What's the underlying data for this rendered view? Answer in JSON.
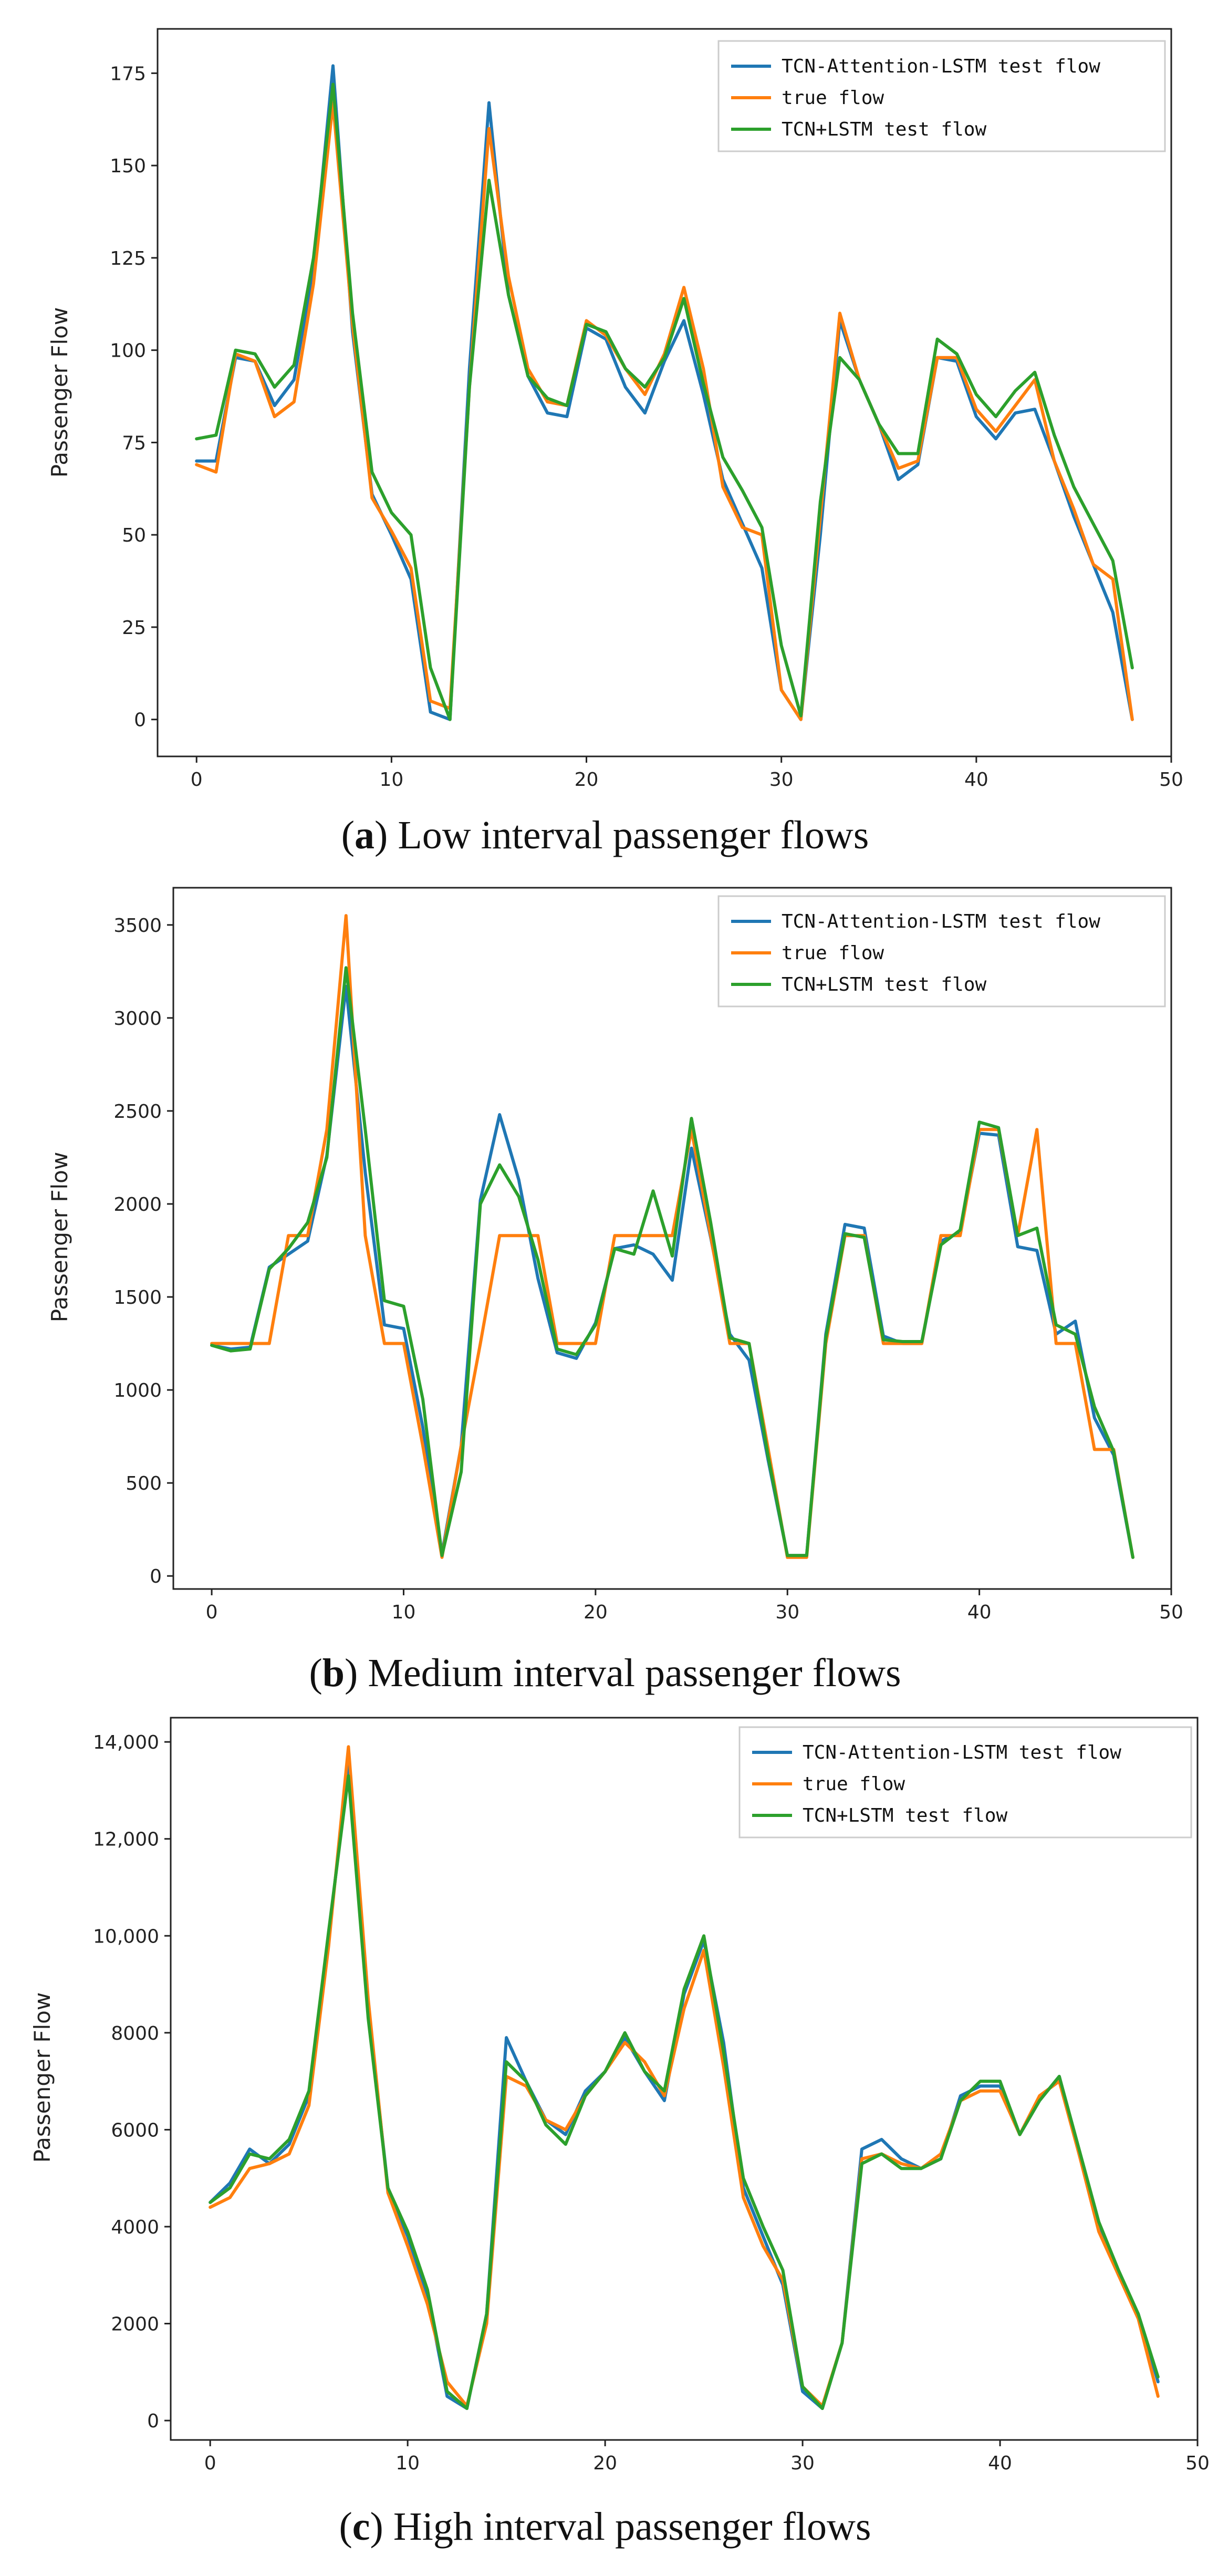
{
  "colors": {
    "tcn_attention_lstm": "#1f77b4",
    "true_flow": "#ff7f0e",
    "tcn_lstm": "#2ca02c"
  },
  "chart_data": [
    {
      "type": "line",
      "caption_letter": "a",
      "caption_text": "Low interval passenger flows",
      "ylabel": "Passenger Flow",
      "xlabel": "",
      "xlim": [
        -2,
        50
      ],
      "ylim": [
        -10,
        187
      ],
      "xticks": [
        0,
        10,
        20,
        30,
        40,
        50
      ],
      "yticks": [
        0,
        25,
        50,
        75,
        100,
        125,
        150,
        175
      ],
      "ytick_labels": [
        "0",
        "25",
        "50",
        "75",
        "100",
        "125",
        "150",
        "175"
      ],
      "legend": [
        "TCN-Attention-LSTM test flow",
        "true flow",
        "TCN+LSTM test flow"
      ],
      "x": [
        0,
        1,
        2,
        3,
        4,
        5,
        6,
        7,
        8,
        9,
        10,
        11,
        12,
        13,
        14,
        15,
        16,
        17,
        18,
        19,
        20,
        21,
        22,
        23,
        24,
        25,
        26,
        27,
        28,
        29,
        30,
        31,
        32,
        33,
        34,
        35,
        36,
        37,
        38,
        39,
        40,
        41,
        42,
        43,
        44,
        45,
        46,
        47,
        48
      ],
      "series": [
        {
          "name": "TCN-Attention-LSTM test flow",
          "values": [
            70,
            70,
            98,
            97,
            85,
            92,
            122,
            177,
            105,
            61,
            50,
            38,
            2,
            0,
            95,
            167,
            115,
            93,
            83,
            82,
            106,
            103,
            90,
            83,
            97,
            108,
            88,
            65,
            53,
            41,
            8,
            0,
            50,
            108,
            92,
            80,
            65,
            69,
            98,
            97,
            82,
            76,
            83,
            84,
            70,
            55,
            42,
            29,
            0
          ]
        },
        {
          "name": "true flow",
          "values": [
            69,
            67,
            99,
            97,
            82,
            86,
            118,
            167,
            107,
            60,
            51,
            41,
            5,
            3,
            90,
            160,
            120,
            95,
            86,
            85,
            108,
            104,
            95,
            88,
            99,
            117,
            95,
            63,
            52,
            50,
            8,
            0,
            55,
            110,
            92,
            80,
            68,
            70,
            98,
            98,
            84,
            78,
            85,
            92,
            70,
            57,
            42,
            38,
            0
          ]
        },
        {
          "name": "TCN+LSTM test flow",
          "values": [
            76,
            77,
            100,
            99,
            90,
            96,
            125,
            172,
            110,
            67,
            56,
            50,
            14,
            0,
            90,
            146,
            115,
            93,
            87,
            85,
            107,
            105,
            95,
            90,
            98,
            114,
            91,
            71,
            62,
            52,
            20,
            1,
            59,
            98,
            92,
            80,
            72,
            72,
            103,
            99,
            88,
            82,
            89,
            94,
            77,
            63,
            53,
            43,
            14
          ]
        }
      ]
    },
    {
      "type": "line",
      "caption_letter": "b",
      "caption_text": "Medium interval passenger flows",
      "ylabel": "Passenger Flow",
      "xlabel": "",
      "xlim": [
        -2,
        50
      ],
      "ylim": [
        -70,
        3700
      ],
      "xticks": [
        0,
        10,
        20,
        30,
        40,
        50
      ],
      "yticks": [
        0,
        500,
        1000,
        1500,
        2000,
        2500,
        3000,
        3500
      ],
      "ytick_labels": [
        "0",
        "500",
        "1000",
        "1500",
        "2000",
        "2500",
        "3000",
        "3500"
      ],
      "legend": [
        "TCN-Attention-LSTM test flow",
        "true flow",
        "TCN+LSTM test flow"
      ],
      "x": [
        0,
        1,
        2,
        3,
        4,
        5,
        6,
        7,
        8,
        9,
        10,
        11,
        12,
        13,
        14,
        15,
        16,
        17,
        18,
        19,
        20,
        21,
        22,
        23,
        24,
        25,
        26,
        27,
        28,
        29,
        30,
        31,
        32,
        33,
        34,
        35,
        36,
        37,
        38,
        39,
        40,
        41,
        42,
        43,
        44,
        45,
        46,
        47,
        48
      ],
      "series": [
        {
          "name": "TCN-Attention-LSTM test flow",
          "values": [
            1240,
            1220,
            1230,
            1660,
            1730,
            1800,
            2260,
            3170,
            2170,
            1350,
            1330,
            800,
            120,
            700,
            2020,
            2480,
            2130,
            1600,
            1200,
            1170,
            1360,
            1760,
            1780,
            1730,
            1590,
            2300,
            1820,
            1300,
            1160,
            620,
            110,
            110,
            1300,
            1890,
            1870,
            1290,
            1250,
            1250,
            1800,
            1850,
            2380,
            2370,
            1770,
            1750,
            1300,
            1370,
            850,
            650,
            100
          ]
        },
        {
          "name": "true flow",
          "values": [
            1250,
            1250,
            1250,
            1250,
            1830,
            1830,
            2400,
            3550,
            1830,
            1250,
            1250,
            700,
            100,
            700,
            1250,
            1830,
            1830,
            1830,
            1250,
            1250,
            1250,
            1830,
            1830,
            1830,
            1830,
            2400,
            1830,
            1250,
            1250,
            680,
            100,
            100,
            1250,
            1830,
            1830,
            1250,
            1250,
            1250,
            1830,
            1830,
            2400,
            2400,
            1830,
            2400,
            1250,
            1250,
            680,
            680,
            100
          ]
        },
        {
          "name": "TCN+LSTM test flow",
          "values": [
            1240,
            1210,
            1220,
            1650,
            1760,
            1900,
            2250,
            3270,
            2400,
            1480,
            1450,
            950,
            110,
            560,
            2000,
            2210,
            2040,
            1700,
            1220,
            1190,
            1350,
            1760,
            1730,
            2070,
            1720,
            2460,
            1900,
            1280,
            1250,
            640,
            110,
            110,
            1280,
            1840,
            1820,
            1270,
            1260,
            1260,
            1780,
            1860,
            2440,
            2410,
            1830,
            1870,
            1350,
            1300,
            910,
            670,
            100
          ]
        }
      ]
    },
    {
      "type": "line",
      "caption_letter": "c",
      "caption_text": "High interval passenger flows",
      "ylabel": "Passenger Flow",
      "xlabel": "",
      "xlim": [
        -2,
        50
      ],
      "ylim": [
        -400,
        14500
      ],
      "xticks": [
        0,
        10,
        20,
        30,
        40,
        50
      ],
      "yticks": [
        0,
        2000,
        4000,
        6000,
        8000,
        10000,
        12000,
        14000
      ],
      "ytick_labels": [
        "0",
        "2000",
        "4000",
        "6000",
        "8000",
        "10,000",
        "12,000",
        "14,000"
      ],
      "legend": [
        "TCN-Attention-LSTM test flow",
        "true flow",
        "TCN+LSTM test flow"
      ],
      "x": [
        0,
        1,
        2,
        3,
        4,
        5,
        6,
        7,
        8,
        9,
        10,
        11,
        12,
        13,
        14,
        15,
        16,
        17,
        18,
        19,
        20,
        21,
        22,
        23,
        24,
        25,
        26,
        27,
        28,
        29,
        30,
        31,
        32,
        33,
        34,
        35,
        36,
        37,
        38,
        39,
        40,
        41,
        42,
        43,
        44,
        45,
        46,
        47,
        48
      ],
      "series": [
        {
          "name": "TCN-Attention-LSTM test flow",
          "values": [
            4500,
            4900,
            5600,
            5300,
            5700,
            6700,
            10000,
            13500,
            8500,
            4800,
            3800,
            2600,
            500,
            250,
            2200,
            7900,
            7000,
            6200,
            5900,
            6800,
            7200,
            7900,
            7200,
            6600,
            8800,
            9900,
            7800,
            4800,
            3800,
            2800,
            600,
            250,
            1600,
            5600,
            5800,
            5400,
            5200,
            5400,
            6700,
            6900,
            6900,
            5900,
            6600,
            7100,
            5500,
            4000,
            3000,
            2200,
            800
          ]
        },
        {
          "name": "true flow",
          "values": [
            4400,
            4600,
            5200,
            5300,
            5500,
            6500,
            9800,
            13900,
            8700,
            4700,
            3600,
            2400,
            800,
            300,
            2000,
            7100,
            6900,
            6200,
            6000,
            6700,
            7200,
            7800,
            7400,
            6700,
            8500,
            9700,
            7300,
            4600,
            3600,
            2900,
            700,
            300,
            1600,
            5400,
            5500,
            5300,
            5200,
            5500,
            6600,
            6800,
            6800,
            5900,
            6700,
            7000,
            5500,
            3900,
            3000,
            2100,
            500
          ]
        },
        {
          "name": "TCN+LSTM test flow",
          "values": [
            4500,
            4800,
            5500,
            5400,
            5800,
            6800,
            10100,
            13300,
            8300,
            4800,
            3900,
            2700,
            600,
            250,
            2200,
            7400,
            7000,
            6100,
            5700,
            6700,
            7200,
            8000,
            7200,
            6800,
            8900,
            10000,
            7600,
            5000,
            4000,
            3100,
            700,
            250,
            1600,
            5300,
            5500,
            5200,
            5200,
            5400,
            6600,
            7000,
            7000,
            5900,
            6600,
            7100,
            5600,
            4100,
            3100,
            2200,
            900
          ]
        }
      ]
    }
  ]
}
